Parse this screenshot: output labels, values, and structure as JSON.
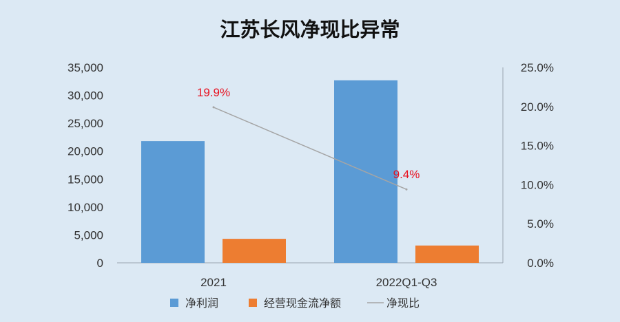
{
  "chart_data": {
    "type": "bar",
    "title": "江苏长风净现比异常",
    "categories": [
      "2021",
      "2022Q1-Q3"
    ],
    "series": [
      {
        "name": "净利润",
        "kind": "bar",
        "axis": "left",
        "color": "#5b9bd5",
        "values": [
          21800,
          32700
        ]
      },
      {
        "name": "经营现金流净额",
        "kind": "bar",
        "axis": "left",
        "color": "#ed7d31",
        "values": [
          4300,
          3100
        ]
      },
      {
        "name": "净现比",
        "kind": "line",
        "axis": "right",
        "color": "#a5a5a5",
        "values": [
          0.199,
          0.094
        ],
        "labels": [
          "19.9%",
          "9.4%"
        ]
      }
    ],
    "y_left": {
      "range": [
        0,
        35000
      ],
      "ticks": [
        "0",
        "5,000",
        "10,000",
        "15,000",
        "20,000",
        "25,000",
        "30,000",
        "35,000"
      ]
    },
    "y_right": {
      "range": [
        0,
        0.25
      ],
      "ticks": [
        "0.0%",
        "5.0%",
        "10.0%",
        "15.0%",
        "20.0%",
        "25.0%"
      ]
    },
    "legend": {
      "position": "bottom"
    },
    "grid": false
  }
}
